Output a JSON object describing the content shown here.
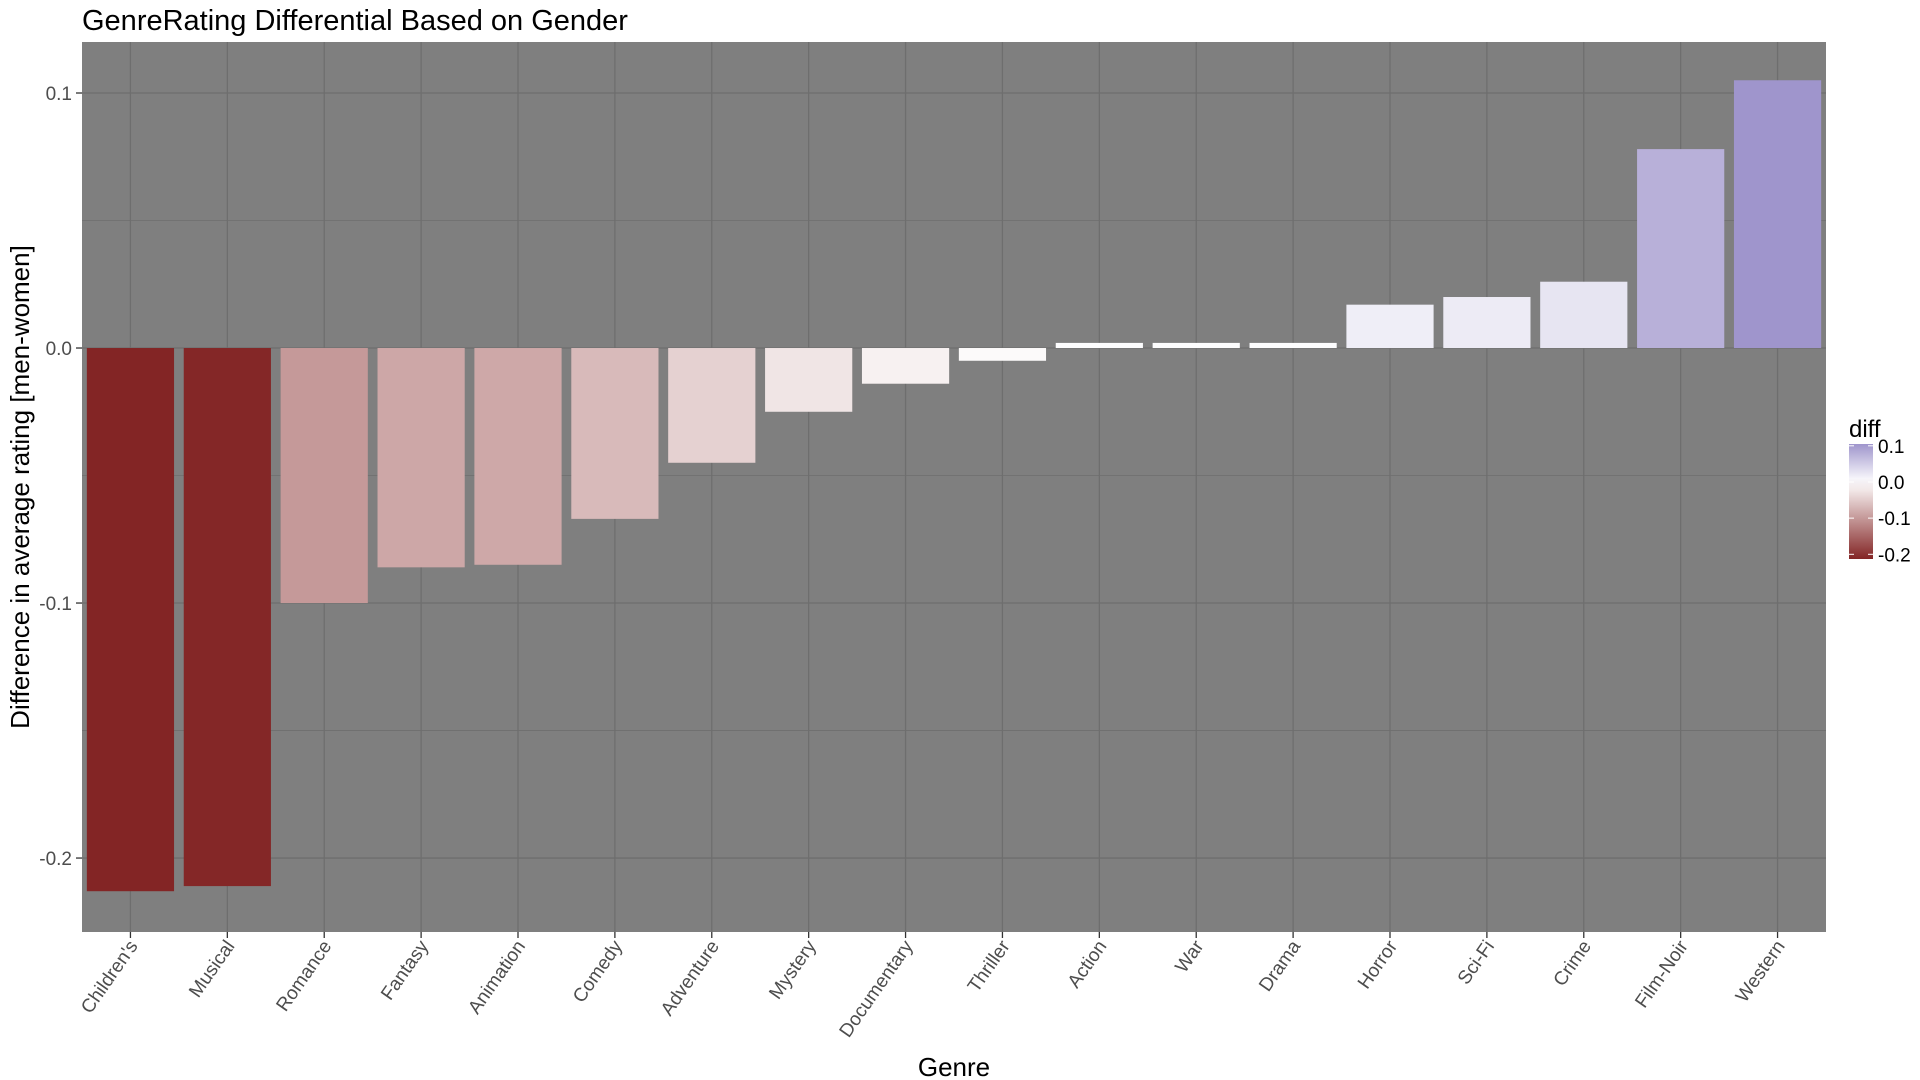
{
  "chart_data": {
    "type": "bar",
    "title": "GenreRating Differential Based on Gender",
    "xlabel": "Genre",
    "ylabel": "Difference in average rating [men-women]",
    "categories": [
      "Children's",
      "Musical",
      "Romance",
      "Fantasy",
      "Animation",
      "Comedy",
      "Adventure",
      "Mystery",
      "Documentary",
      "Thriller",
      "Action",
      "War",
      "Drama",
      "Horror",
      "Sci-Fi",
      "Crime",
      "Film-Noir",
      "Western"
    ],
    "values": [
      -0.213,
      -0.211,
      -0.1,
      -0.086,
      -0.085,
      -0.067,
      -0.045,
      -0.025,
      -0.014,
      -0.005,
      0.002,
      0.002,
      0.002,
      0.017,
      0.02,
      0.026,
      0.078,
      0.105
    ],
    "ylim": [
      -0.229,
      0.12
    ],
    "yticks": [
      -0.2,
      -0.1,
      0.0,
      0.1
    ],
    "ytick_labels": [
      "-0.2",
      "-0.1",
      "0.0",
      "0.1"
    ],
    "grid": true,
    "panel_background": "#7f7f7f",
    "grid_color": "#6e6e6e",
    "legend": {
      "title": "diff",
      "position": "right",
      "labels": [
        "0.1",
        "0.0",
        "-0.1",
        "-0.2"
      ],
      "values": [
        0.1,
        0.0,
        -0.1,
        -0.2
      ],
      "low_color": "#832525",
      "mid_color": "#ffffff",
      "high_color": "#9f95cc",
      "range": [
        -0.213,
        0.105
      ]
    }
  }
}
